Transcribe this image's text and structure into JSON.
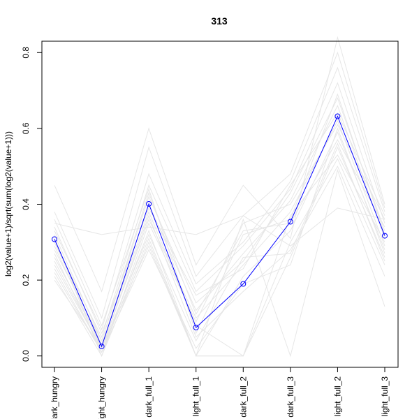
{
  "chart_data": {
    "type": "line",
    "title": "313",
    "xlabel": "",
    "ylabel": "log2(value+1)/sqrt(sum(log2(value+1)))",
    "categories": [
      "dark_hungry",
      "light_hungry",
      "dark_full_1",
      "light_full_1",
      "dark_full_2",
      "dark_full_3",
      "light_full_2",
      "light_full_3"
    ],
    "ylim": [
      -0.03,
      0.83
    ],
    "yticks": [
      0.0,
      0.2,
      0.4,
      0.6,
      0.8
    ],
    "ytick_labels": [
      "0.0",
      "0.2",
      "0.4",
      "0.6",
      "0.8"
    ],
    "highlight_color": "#0000ff",
    "background_color": "#e6e6e6",
    "highlight_series": {
      "values": [
        0.308,
        0.025,
        0.401,
        0.075,
        0.19,
        0.354,
        0.632,
        0.317
      ]
    },
    "background_series": [
      [
        0.35,
        0.32,
        0.34,
        0.32,
        0.37,
        0.29,
        0.39,
        0.36
      ],
      [
        0.45,
        0.17,
        0.6,
        0.24,
        0.45,
        0.31,
        0.84,
        0.4
      ],
      [
        0.38,
        0.1,
        0.55,
        0.21,
        0.37,
        0.48,
        0.8,
        0.39
      ],
      [
        0.33,
        0.07,
        0.48,
        0.19,
        0.3,
        0.46,
        0.76,
        0.38
      ],
      [
        0.3,
        0.05,
        0.45,
        0.17,
        0.29,
        0.44,
        0.72,
        0.35
      ],
      [
        0.28,
        0.04,
        0.42,
        0.14,
        0.25,
        0.43,
        0.68,
        0.33
      ],
      [
        0.26,
        0.03,
        0.4,
        0.12,
        0.27,
        0.41,
        0.66,
        0.31
      ],
      [
        0.24,
        0.02,
        0.36,
        0.1,
        0.24,
        0.38,
        0.62,
        0.29
      ],
      [
        0.23,
        0.01,
        0.33,
        0.0,
        0.21,
        0.33,
        0.59,
        0.28
      ],
      [
        0.21,
        0.0,
        0.3,
        0.0,
        0.0,
        0.26,
        0.55,
        0.26
      ],
      [
        0.27,
        0.01,
        0.31,
        0.0,
        0.0,
        0.3,
        0.52,
        0.24
      ],
      [
        0.3,
        0.03,
        0.38,
        0.08,
        0.0,
        0.37,
        0.53,
        0.3
      ],
      [
        0.25,
        0.02,
        0.29,
        0.0,
        0.36,
        0.0,
        0.49,
        0.13
      ],
      [
        0.32,
        0.04,
        0.43,
        0.11,
        0.33,
        0.35,
        0.57,
        0.34
      ],
      [
        0.29,
        0.02,
        0.37,
        0.05,
        0.17,
        0.28,
        0.5,
        0.21
      ],
      [
        0.34,
        0.06,
        0.39,
        0.16,
        0.23,
        0.45,
        0.64,
        0.37
      ],
      [
        0.22,
        0.01,
        0.28,
        0.02,
        0.19,
        0.24,
        0.6,
        0.27
      ],
      [
        0.36,
        0.08,
        0.44,
        0.06,
        0.32,
        0.36,
        0.69,
        0.32
      ],
      [
        0.31,
        0.0,
        0.35,
        0.09,
        0.35,
        0.4,
        0.61,
        0.36
      ],
      [
        0.2,
        0.02,
        0.32,
        0.04,
        0.26,
        0.27,
        0.56,
        0.25
      ]
    ]
  }
}
